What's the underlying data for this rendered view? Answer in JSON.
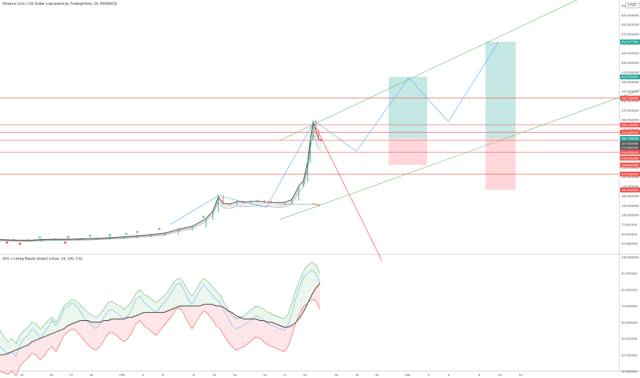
{
  "header": {
    "title": "Binance Coin / US Dollar (calculated by TradingView), 1h, BINANCE",
    "currency": "USD"
  },
  "indicator": {
    "title": "RSI + Linreg Bands (Expo) (close, 14, 100, 2.5)"
  },
  "colors": {
    "price_line": "#333333",
    "candle_up": "#26a69a",
    "candle_down": "#ef5350",
    "green_channel": "#66bb6a",
    "blue_path": "#64b5f6",
    "red_lines": "#ef5350",
    "profit_zone": "#b2dfdb",
    "loss_zone": "#ffcdd2",
    "rsi_blue": "#64b5f6",
    "rsi_green": "#66bb6a",
    "rsi_red": "#ef5350",
    "rsi_black": "#333333"
  },
  "chart_data": [
    {
      "type": "line",
      "pane": "price",
      "ylim": [
        0,
        650
      ],
      "y_ticks": [
        "650.0000000",
        "625.0000000",
        "600.0000000",
        "575.0000000",
        "550.0000000",
        "525.0000000",
        "500.0000000",
        "475.0000000",
        "450.0000000",
        "425.0000000",
        "400.0000000",
        "375.0000000",
        "350.0000000",
        "325.0000000",
        "300.0000000",
        "275.0000000",
        "250.0000000",
        "225.0000000",
        "200.0000000",
        "175.0000000",
        "150.0000000",
        "125.0000000",
        "100.0000000",
        "75.0000000",
        "50.0000000",
        "25.0000000"
      ],
      "x_ticks": [
        "22",
        "25",
        "27",
        "29",
        "Feb",
        "3",
        "5",
        "8",
        "10",
        "12",
        "15",
        "17",
        "19",
        "22",
        "24",
        "26",
        "Mar",
        "3",
        "5",
        "8",
        "10",
        "12"
      ],
      "price_labels": [
        {
          "value": "554.4477940",
          "color": "#26a69a"
        },
        {
          "value": "462.3754067",
          "color": "#26a69a"
        },
        {
          "value": "406.7028408",
          "color": "#ef5350"
        },
        {
          "value": "336.1700000",
          "color": "#ef5350"
        },
        {
          "value": "316.9290253",
          "color": "#ef5350"
        },
        {
          "value": "300.7700000",
          "color": "#26a69a"
        },
        {
          "value": "287.9828468",
          "color": "#555555"
        },
        {
          "value": "276.9063000",
          "color": "#555555"
        },
        {
          "value": "264.4029144",
          "color": "#ef5350"
        },
        {
          "value": "249.1421399",
          "color": "#ef5350"
        },
        {
          "value": "230.9932328",
          "color": "#ef5350"
        },
        {
          "value": "207.2458238",
          "color": "#ef5350"
        },
        {
          "value": "165.3195818",
          "color": "#ef5350"
        }
      ],
      "horizontal_levels": [
        406.7,
        336.17,
        316.93,
        296.0,
        264.4,
        207.25
      ],
      "price_series": [
        {
          "x": 0,
          "y": 35
        },
        {
          "x": 20,
          "y": 34
        },
        {
          "x": 40,
          "y": 33
        },
        {
          "x": 60,
          "y": 35
        },
        {
          "x": 80,
          "y": 36
        },
        {
          "x": 100,
          "y": 36
        },
        {
          "x": 120,
          "y": 37
        },
        {
          "x": 140,
          "y": 38
        },
        {
          "x": 160,
          "y": 40
        },
        {
          "x": 180,
          "y": 42
        },
        {
          "x": 200,
          "y": 45
        },
        {
          "x": 220,
          "y": 48
        },
        {
          "x": 240,
          "y": 52
        },
        {
          "x": 260,
          "y": 62
        },
        {
          "x": 280,
          "y": 70
        },
        {
          "x": 300,
          "y": 90
        },
        {
          "x": 310,
          "y": 110
        },
        {
          "x": 318,
          "y": 147
        },
        {
          "x": 325,
          "y": 130
        },
        {
          "x": 335,
          "y": 128
        },
        {
          "x": 345,
          "y": 135
        },
        {
          "x": 355,
          "y": 133
        },
        {
          "x": 365,
          "y": 135
        },
        {
          "x": 375,
          "y": 136
        },
        {
          "x": 385,
          "y": 134
        },
        {
          "x": 395,
          "y": 133
        },
        {
          "x": 405,
          "y": 132
        },
        {
          "x": 415,
          "y": 133
        },
        {
          "x": 425,
          "y": 140
        },
        {
          "x": 435,
          "y": 175
        },
        {
          "x": 442,
          "y": 190
        },
        {
          "x": 448,
          "y": 240
        },
        {
          "x": 452,
          "y": 300
        },
        {
          "x": 456,
          "y": 345
        },
        {
          "x": 460,
          "y": 320
        },
        {
          "x": 464,
          "y": 300
        },
        {
          "x": 468,
          "y": 295
        }
      ]
    },
    {
      "type": "line",
      "pane": "rsi",
      "ylim": [
        30,
        100
      ],
      "y_ticks": [
        "100.0000000",
        "90.0000000",
        "80.0000000",
        "70.0000000",
        "60.0000000",
        "50.0000000",
        "40.0000000",
        "30.0000000"
      ],
      "series": [
        {
          "color_key": "rsi_green",
          "values": [
            55,
            51,
            48,
            50,
            47,
            52,
            55,
            57,
            60,
            59,
            56,
            58,
            61,
            63,
            60,
            65,
            70,
            72,
            74,
            73,
            71,
            68,
            66,
            64,
            63,
            65,
            68,
            72,
            73,
            71,
            70,
            68,
            70,
            73,
            78,
            80,
            77,
            76,
            74,
            72,
            74,
            76,
            79,
            83,
            86,
            87,
            84,
            79,
            76,
            80,
            84,
            87,
            85,
            82,
            79,
            77,
            72,
            68,
            64,
            62,
            63,
            64,
            66,
            68,
            70,
            69,
            68,
            66,
            65,
            64,
            63,
            62,
            65,
            72,
            80,
            86,
            92,
            95,
            97,
            95,
            90
          ]
        },
        {
          "color_key": "rsi_blue",
          "values": [
            45,
            43,
            40,
            42,
            39,
            46,
            50,
            52,
            56,
            54,
            50,
            53,
            57,
            61,
            58,
            62,
            68,
            70,
            72,
            70,
            67,
            63,
            60,
            58,
            56,
            59,
            63,
            67,
            68,
            66,
            64,
            62,
            64,
            68,
            74,
            76,
            72,
            70,
            68,
            66,
            69,
            72,
            75,
            79,
            83,
            84,
            80,
            74,
            71,
            75,
            80,
            83,
            80,
            77,
            74,
            72,
            67,
            63,
            58,
            56,
            57,
            58,
            60,
            62,
            64,
            63,
            61,
            59,
            58,
            57,
            56,
            55,
            58,
            66,
            75,
            82,
            88,
            90,
            92,
            90,
            84
          ]
        },
        {
          "color_key": "rsi_black",
          "values": [
            40,
            40,
            41,
            42,
            43,
            44,
            45,
            46,
            48,
            49,
            50,
            51,
            52,
            53,
            54,
            55,
            56,
            58,
            59,
            60,
            61,
            61,
            61,
            60,
            60,
            60,
            61,
            61,
            62,
            62,
            62,
            62,
            63,
            63,
            64,
            65,
            66,
            66,
            66,
            66,
            66,
            66,
            67,
            68,
            69,
            70,
            70,
            70,
            70,
            70,
            70,
            71,
            71,
            71,
            70,
            70,
            69,
            67,
            66,
            64,
            63,
            62,
            62,
            62,
            62,
            61,
            61,
            60,
            60,
            59,
            58,
            57,
            57,
            58,
            60,
            63,
            67,
            72,
            77,
            81,
            84
          ]
        },
        {
          "color_key": "rsi_red",
          "values": [
            30,
            29,
            28,
            30,
            27,
            33,
            36,
            38,
            41,
            40,
            37,
            39,
            43,
            45,
            42,
            47,
            52,
            54,
            56,
            55,
            52,
            49,
            46,
            44,
            43,
            45,
            49,
            53,
            54,
            52,
            50,
            48,
            50,
            54,
            59,
            61,
            58,
            56,
            54,
            52,
            55,
            58,
            61,
            64,
            68,
            69,
            65,
            60,
            56,
            60,
            64,
            67,
            65,
            62,
            58,
            56,
            52,
            48,
            45,
            43,
            44,
            45,
            47,
            49,
            51,
            50,
            48,
            46,
            45,
            44,
            43,
            42,
            45,
            52,
            60,
            66,
            70,
            72,
            74,
            73,
            68
          ]
        }
      ]
    }
  ]
}
